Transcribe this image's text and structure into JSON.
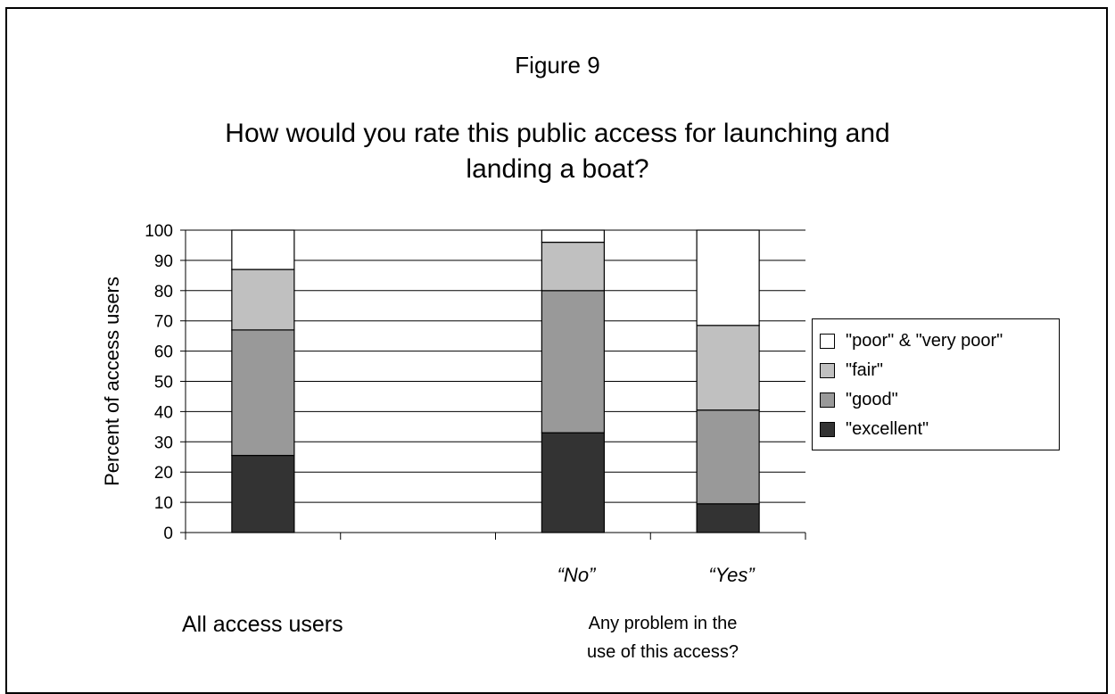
{
  "figure_label": "Figure 9",
  "chart_data": {
    "type": "bar",
    "stacked": true,
    "title_lines": [
      "How would you rate this public access for launching and",
      "landing a boat?"
    ],
    "ylabel": "Percent of access users",
    "ylim": [
      0,
      100
    ],
    "yticks": [
      "0",
      "10",
      "20",
      "30",
      "40",
      "50",
      "60",
      "70",
      "80",
      "90",
      "100"
    ],
    "grid": "horizontal",
    "legend_position": "right",
    "categories": [
      "",
      "",
      "“No”",
      "“Yes”"
    ],
    "group_labels": {
      "all": "All access users",
      "problem_line1": "Any problem in the",
      "problem_line2": "use of this access?"
    },
    "series": [
      {
        "name": "\"excellent\"",
        "color": "#333333",
        "values": [
          25.5,
          null,
          33,
          9.5
        ]
      },
      {
        "name": "\"good\"",
        "color": "#999999",
        "values": [
          41.5,
          null,
          47,
          31
        ]
      },
      {
        "name": "\"fair\"",
        "color": "#c0c0c0",
        "values": [
          20,
          null,
          16,
          28
        ]
      },
      {
        "name": "\"poor\" & \"very poor\"",
        "color": "#ffffff",
        "values": [
          13,
          null,
          4,
          31.5
        ]
      }
    ]
  }
}
